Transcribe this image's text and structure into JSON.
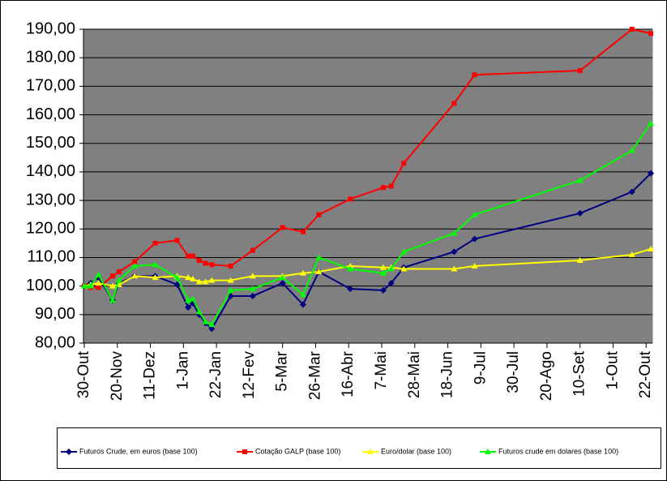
{
  "chart_data": {
    "type": "line",
    "x": [
      0,
      4,
      9,
      18,
      22,
      32,
      45,
      59,
      66,
      69,
      73,
      77,
      81,
      93,
      107,
      126,
      139,
      149,
      169,
      190,
      195,
      203,
      235,
      248,
      315,
      348,
      360
    ],
    "xlim": [
      0,
      361
    ],
    "xticks": [
      {
        "value": 0,
        "label": "30-Out"
      },
      {
        "value": 21,
        "label": "20-Nov"
      },
      {
        "value": 42,
        "label": "11-Dez"
      },
      {
        "value": 63,
        "label": "1-Jan"
      },
      {
        "value": 84,
        "label": "22-Jan"
      },
      {
        "value": 105,
        "label": "12-Fev"
      },
      {
        "value": 126,
        "label": "5-Mar"
      },
      {
        "value": 147,
        "label": "26-Mar"
      },
      {
        "value": 168,
        "label": "16-Abr"
      },
      {
        "value": 189,
        "label": "7-Mai"
      },
      {
        "value": 210,
        "label": "28-Mai"
      },
      {
        "value": 231,
        "label": "18-Jun"
      },
      {
        "value": 252,
        "label": "9-Jul"
      },
      {
        "value": 273,
        "label": "30-Jul"
      },
      {
        "value": 294,
        "label": "20-Ago"
      },
      {
        "value": 315,
        "label": "10-Set"
      },
      {
        "value": 336,
        "label": "1-Out"
      },
      {
        "value": 357,
        "label": "22-Out"
      }
    ],
    "ylim": [
      80,
      190
    ],
    "yticks": [
      {
        "value": 80,
        "label": "80,00"
      },
      {
        "value": 90,
        "label": "90,00"
      },
      {
        "value": 100,
        "label": "100,00"
      },
      {
        "value": 110,
        "label": "110,00"
      },
      {
        "value": 120,
        "label": "120,00"
      },
      {
        "value": 130,
        "label": "130,00"
      },
      {
        "value": 140,
        "label": "140,00"
      },
      {
        "value": 150,
        "label": "150,00"
      },
      {
        "value": 160,
        "label": "160,00"
      },
      {
        "value": 170,
        "label": "170,00"
      },
      {
        "value": 180,
        "label": "180,00"
      },
      {
        "value": 190,
        "label": "190,00"
      }
    ],
    "grid": true,
    "legend": "bottom",
    "series": [
      {
        "name": "Futuros Crude, em euros (base 100)",
        "color": "#000080",
        "marker": "diamond",
        "values": [
          100,
          101,
          103,
          95,
          101,
          103.5,
          103.5,
          100.5,
          92.5,
          94,
          90,
          87,
          85,
          96.5,
          96.5,
          101,
          93.5,
          105,
          99,
          98.5,
          101,
          106.5,
          112,
          116.5,
          125.5,
          133,
          139.5
        ]
      },
      {
        "name": "Cotação GALP (base 100)",
        "color": "#ff0000",
        "marker": "square",
        "values": [
          100,
          99.5,
          99.5,
          103.5,
          105,
          108.5,
          115,
          116,
          110.5,
          110.5,
          109,
          108,
          107.5,
          107,
          112.5,
          120.5,
          119,
          125,
          130.5,
          134.5,
          135,
          143,
          164,
          174,
          175.5,
          190,
          188.5
        ]
      },
      {
        "name": "Euro/dolar (base 100)",
        "color": "#ffff00",
        "marker": "triangle",
        "values": [
          100,
          100.5,
          101,
          100,
          100.5,
          103.5,
          103,
          103.5,
          103,
          102.5,
          101.5,
          101.5,
          102,
          102,
          103.5,
          103.5,
          104.5,
          105,
          107,
          106.5,
          106.5,
          106,
          106,
          107,
          109,
          111,
          113
        ]
      },
      {
        "name": "Futuros crude em dolares (base 100)",
        "color": "#00ff00",
        "marker": "triangle",
        "values": [
          100,
          100,
          104,
          95,
          102,
          107,
          107.5,
          103,
          95,
          95.5,
          91,
          87.5,
          86.5,
          98.5,
          99,
          103,
          97,
          110,
          106,
          104.5,
          106,
          112,
          118.5,
          125,
          137,
          147.5,
          157
        ]
      }
    ]
  }
}
